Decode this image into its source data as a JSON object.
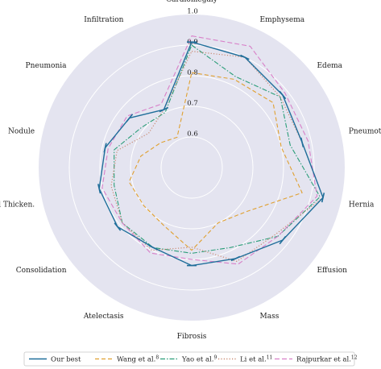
{
  "chart_data": {
    "type": "radar",
    "categories": [
      "Cardiomegaly",
      "Emphysema",
      "Edema",
      "Pneumothorax",
      "Hernia",
      "Effusion",
      "Mass",
      "Fibrosis",
      "Atelectasis",
      "Consolidation",
      "Pleural Thicken.",
      "Nodule",
      "Pneumonia",
      "Infiltration"
    ],
    "rlim": [
      0.5,
      1.0
    ],
    "rticks": [
      {
        "value": 0.6,
        "label": "0.6"
      },
      {
        "value": 0.7,
        "label": "0.7"
      },
      {
        "value": 0.8,
        "label": "0.8"
      },
      {
        "value": 0.9,
        "label": "0.9"
      },
      {
        "value": 1.0,
        "label": "1.0"
      }
    ],
    "grid": true,
    "background_color": "#e4e4f0",
    "legend_position": "bottom",
    "series": [
      {
        "name": "Our best",
        "sup": "",
        "color": "#1f6e9a",
        "dash": "",
        "width": 1.4,
        "error_bars": true,
        "values": [
          0.91,
          0.9,
          0.88,
          0.87,
          0.94,
          0.88,
          0.83,
          0.82,
          0.79,
          0.81,
          0.81,
          0.79,
          0.76,
          0.71
        ]
      },
      {
        "name": "Wang et al.",
        "sup": "8",
        "color": "#e0a030",
        "dash": "5,3",
        "width": 1.1,
        "error_bars": false,
        "values": [
          0.81,
          0.82,
          0.84,
          0.8,
          0.87,
          0.73,
          0.7,
          0.77,
          0.71,
          0.7,
          0.71,
          0.67,
          0.63,
          0.61
        ]
      },
      {
        "name": "Yao et al.",
        "sup": "9",
        "color": "#2a9d78",
        "dash": "6,2,1.5,2",
        "width": 1.1,
        "error_bars": false,
        "values": [
          0.9,
          0.83,
          0.87,
          0.83,
          0.93,
          0.86,
          0.79,
          0.78,
          0.79,
          0.79,
          0.76,
          0.76,
          0.71,
          0.7
        ]
      },
      {
        "name": "Li et al.",
        "sup": "11",
        "color": "#c98a72",
        "dash": "1.2,2.2",
        "width": 1.2,
        "error_bars": false,
        "values": [
          0.88,
          0.9,
          0.87,
          0.87,
          0.94,
          0.85,
          0.84,
          0.76,
          0.8,
          0.79,
          0.77,
          0.75,
          0.68,
          0.71
        ]
      },
      {
        "name": "Rajpurkar et al.",
        "sup": "12",
        "color": "#d880c8",
        "dash": "6,3",
        "width": 1.1,
        "error_bars": false,
        "values": [
          0.93,
          0.94,
          0.89,
          0.89,
          0.92,
          0.86,
          0.85,
          0.8,
          0.81,
          0.79,
          0.8,
          0.78,
          0.77,
          0.73
        ]
      }
    ]
  }
}
